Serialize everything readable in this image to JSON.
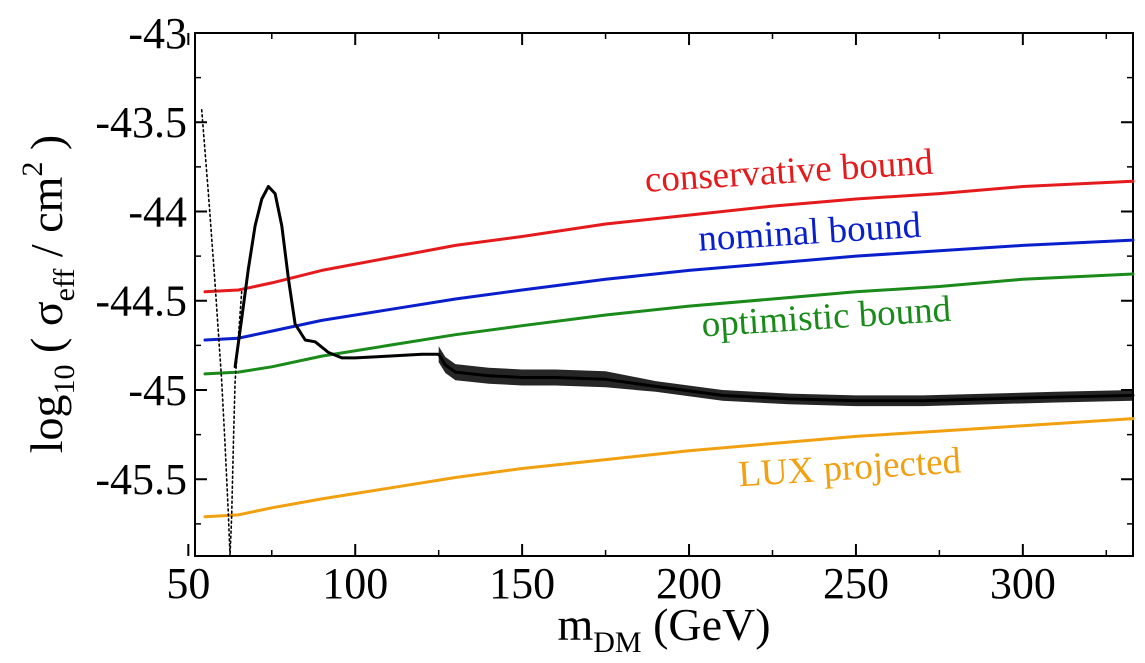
{
  "chart_data": {
    "type": "line",
    "title": "",
    "xlabel": {
      "main": "m",
      "sub": "DM",
      "unit": " (GeV)"
    },
    "ylabel": {
      "pre": "log",
      "sub": "10",
      "open": " ( ",
      "sigma": "σ",
      "sigma_sub": "eff",
      "mid": " / cm",
      "sup": "2",
      "close": " )"
    },
    "xlim": [
      52,
      333
    ],
    "ylim": [
      -45.93,
      -43
    ],
    "xticks": [
      50,
      100,
      150,
      200,
      250,
      300
    ],
    "xtick_labels": [
      "50",
      "100",
      "150",
      "200",
      "250",
      "300"
    ],
    "yticks": [
      -43,
      -43.5,
      -44,
      -44.5,
      -45,
      -45.5
    ],
    "ytick_labels": [
      "-43",
      "-43.5",
      "-44",
      "-44.5",
      "-45",
      "-45.5"
    ],
    "series": [
      {
        "name": "conservative bound",
        "color": "#e41a1c",
        "x": [
          55,
          65,
          75,
          90,
          110,
          130,
          150,
          175,
          200,
          225,
          250,
          275,
          300,
          333
        ],
        "y": [
          -44.45,
          -44.44,
          -44.4,
          -44.33,
          -44.26,
          -44.19,
          -44.14,
          -44.07,
          -44.02,
          -43.97,
          -43.93,
          -43.9,
          -43.86,
          -43.83
        ]
      },
      {
        "name": "nominal bound",
        "color": "#0a1fcc",
        "x": [
          55,
          65,
          75,
          90,
          110,
          130,
          150,
          175,
          200,
          225,
          250,
          275,
          300,
          333
        ],
        "y": [
          -44.72,
          -44.71,
          -44.67,
          -44.61,
          -44.55,
          -44.49,
          -44.44,
          -44.38,
          -44.33,
          -44.29,
          -44.25,
          -44.22,
          -44.19,
          -44.16
        ]
      },
      {
        "name": "optimistic bound",
        "color": "#1a8a1a",
        "x": [
          55,
          65,
          75,
          90,
          110,
          130,
          150,
          175,
          200,
          225,
          250,
          275,
          300,
          333
        ],
        "y": [
          -44.91,
          -44.9,
          -44.87,
          -44.81,
          -44.75,
          -44.69,
          -44.64,
          -44.58,
          -44.53,
          -44.49,
          -44.45,
          -44.42,
          -44.38,
          -44.35
        ]
      },
      {
        "name": "LUX projected",
        "color": "#f0a010",
        "x": [
          55,
          65,
          75,
          90,
          110,
          130,
          150,
          175,
          200,
          225,
          250,
          275,
          300,
          333
        ],
        "y": [
          -45.71,
          -45.7,
          -45.66,
          -45.61,
          -45.55,
          -45.49,
          -45.44,
          -45.39,
          -45.34,
          -45.3,
          -45.26,
          -45.23,
          -45.2,
          -45.16
        ]
      },
      {
        "name": "model prediction",
        "color": "#000000",
        "x": [
          64,
          66,
          68,
          70,
          72,
          74,
          76,
          78,
          80,
          82,
          85,
          88,
          92,
          96,
          100,
          110,
          120,
          125,
          127,
          130,
          140,
          150,
          160,
          175,
          190,
          210,
          230,
          250,
          270,
          290,
          310,
          333
        ],
        "y": [
          -44.87,
          -44.6,
          -44.32,
          -44.08,
          -43.93,
          -43.86,
          -43.9,
          -44.08,
          -44.38,
          -44.63,
          -44.72,
          -44.73,
          -44.79,
          -44.82,
          -44.82,
          -44.81,
          -44.8,
          -44.8,
          -44.86,
          -44.9,
          -44.92,
          -44.93,
          -44.93,
          -44.94,
          -44.98,
          -45.03,
          -45.05,
          -45.06,
          -45.06,
          -45.05,
          -45.04,
          -45.03
        ]
      },
      {
        "name": "Higgs resonance",
        "color": "#000000",
        "x": [
          54,
          56,
          58,
          60,
          61,
          62,
          62.5,
          63,
          63.5,
          64,
          65,
          66
        ],
        "y": [
          -43.43,
          -43.9,
          -44.4,
          -44.95,
          -45.3,
          -45.7,
          -45.93,
          -45.7,
          -45.3,
          -44.95,
          -44.7,
          -44.45
        ]
      }
    ],
    "annotations": [
      {
        "text": "conservative bound",
        "color": "#e41a1c",
        "x": 187,
        "y": -43.89,
        "rotate": -3.6
      },
      {
        "text": "nominal bound",
        "color": "#0a1fcc",
        "x": 203,
        "y": -44.22,
        "rotate": -3.6
      },
      {
        "text": "optimistic bound",
        "color": "#1a8a1a",
        "x": 204,
        "y": -44.7,
        "rotate": -3.6
      },
      {
        "text": "LUX projected",
        "color": "#f0a010",
        "x": 215,
        "y": -45.54,
        "rotate": -3.6
      }
    ],
    "grid": false,
    "legend": "none"
  }
}
